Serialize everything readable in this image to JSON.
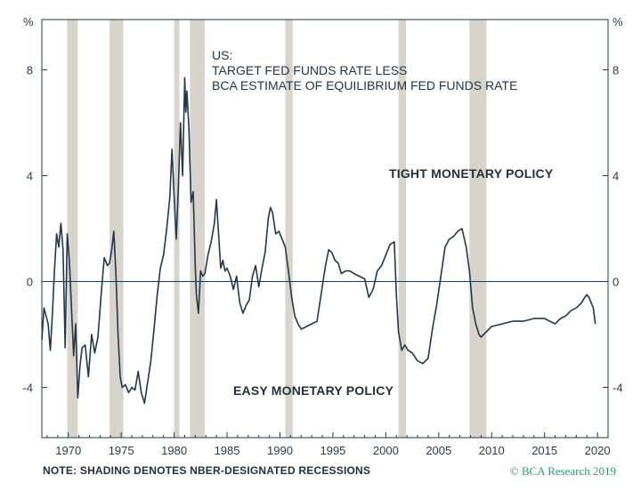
{
  "chart_data": {
    "type": "line",
    "title_lines": [
      "US:",
      "TARGET FED FUNDS RATE LESS",
      "BCA ESTIMATE OF EQUILIBRIUM FED FUNDS RATE"
    ],
    "unit_left": "%",
    "unit_right": "%",
    "xlim": [
      1967.5,
      2021
    ],
    "ylim": [
      -5.9,
      9.9
    ],
    "x_ticks": [
      1970,
      1975,
      1980,
      1985,
      1990,
      1995,
      2000,
      2005,
      2010,
      2015,
      2020
    ],
    "y_ticks": [
      -4,
      0,
      4,
      8
    ],
    "zero_line": true,
    "line_color": "#22384a",
    "recession_color": "#d8d4cc",
    "annotations": [
      "TIGHT MONETARY POLICY",
      "EASY MONETARY POLICY"
    ],
    "recessions": [
      [
        1969.9,
        1970.9
      ],
      [
        1973.9,
        1975.2
      ],
      [
        1980.0,
        1980.5
      ],
      [
        1981.5,
        1982.9
      ],
      [
        1990.5,
        1991.2
      ],
      [
        2001.2,
        2001.9
      ],
      [
        2007.9,
        2009.5
      ]
    ],
    "series": [
      {
        "x": [
          1967.5,
          1967.7,
          1967.9,
          1968.1,
          1968.3,
          1968.5,
          1968.7,
          1968.9,
          1969.1,
          1969.3,
          1969.5,
          1969.7,
          1969.9,
          1970.1,
          1970.3,
          1970.5,
          1970.7,
          1970.9,
          1971.1,
          1971.3,
          1971.6,
          1971.9,
          1972.2,
          1972.5,
          1972.8,
          1973.1,
          1973.4,
          1973.7,
          1973.9,
          1974.1,
          1974.3,
          1974.5,
          1974.7,
          1974.9,
          1975.1,
          1975.4,
          1975.7,
          1976.0,
          1976.3,
          1976.6,
          1976.9,
          1977.2,
          1977.5,
          1977.8,
          1978.1,
          1978.4,
          1978.7,
          1979.0,
          1979.3,
          1979.6,
          1979.8,
          1980.0,
          1980.2,
          1980.4,
          1980.6,
          1980.8,
          1981.0,
          1981.1,
          1981.2,
          1981.4,
          1981.6,
          1981.8,
          1982.0,
          1982.1,
          1982.3,
          1982.5,
          1982.7,
          1982.9,
          1983.2,
          1983.5,
          1983.8,
          1984.0,
          1984.2,
          1984.4,
          1984.6,
          1984.8,
          1985.0,
          1985.3,
          1985.6,
          1985.9,
          1986.2,
          1986.5,
          1986.8,
          1987.1,
          1987.4,
          1987.7,
          1988.0,
          1988.3,
          1988.6,
          1988.9,
          1989.1,
          1989.3,
          1989.6,
          1989.9,
          1990.2,
          1990.5,
          1990.8,
          1991.1,
          1991.4,
          1991.7,
          1992.0,
          1992.5,
          1993.0,
          1993.5,
          1994.0,
          1994.3,
          1994.6,
          1994.9,
          1995.2,
          1995.5,
          1995.8,
          1996.2,
          1996.6,
          1997.0,
          1997.5,
          1998.0,
          1998.4,
          1998.8,
          1999.2,
          1999.6,
          2000.0,
          2000.4,
          2000.8,
          2001.0,
          2001.2,
          2001.5,
          2001.8,
          2002.1,
          2002.5,
          2003.0,
          2003.5,
          2004.0,
          2004.4,
          2004.8,
          2005.2,
          2005.6,
          2006.0,
          2006.4,
          2006.8,
          2007.2,
          2007.6,
          2007.9,
          2008.2,
          2008.5,
          2008.8,
          2009.0,
          2009.5,
          2010.0,
          2011.0,
          2012.0,
          2013.0,
          2014.0,
          2015.0,
          2015.5,
          2016.0,
          2016.5,
          2017.0,
          2017.5,
          2018.0,
          2018.5,
          2018.8,
          2019.0,
          2019.2,
          2019.4,
          2019.6,
          2019.8
        ],
        "y": [
          -2.2,
          -1.0,
          -1.3,
          -1.6,
          -2.6,
          -1.2,
          0.5,
          1.8,
          1.3,
          2.2,
          1.2,
          -2.5,
          1.8,
          0.8,
          -1.0,
          -2.8,
          -1.6,
          -4.4,
          -3.2,
          -2.5,
          -2.4,
          -3.6,
          -2.0,
          -2.7,
          -2.1,
          -0.5,
          0.9,
          0.6,
          0.7,
          1.2,
          1.9,
          0.3,
          -2.0,
          -3.6,
          -4.0,
          -3.9,
          -4.2,
          -4.0,
          -4.1,
          -3.4,
          -4.2,
          -4.6,
          -3.8,
          -3.0,
          -1.8,
          -0.5,
          0.5,
          1.0,
          2.0,
          3.2,
          5.0,
          3.2,
          1.6,
          3.6,
          6.0,
          4.0,
          7.7,
          6.4,
          7.2,
          5.8,
          3.0,
          3.4,
          0.5,
          -0.5,
          -1.2,
          0.4,
          0.2,
          0.3,
          1.0,
          1.5,
          2.2,
          3.1,
          1.8,
          0.5,
          0.8,
          0.4,
          0.5,
          0.2,
          -0.3,
          0.2,
          -0.8,
          -1.2,
          -0.9,
          -0.7,
          0.2,
          0.6,
          -0.2,
          0.5,
          1.1,
          2.4,
          2.8,
          2.6,
          1.8,
          1.9,
          1.6,
          1.3,
          0.4,
          -0.6,
          -1.3,
          -1.6,
          -1.8,
          -1.7,
          -1.6,
          -1.5,
          -0.2,
          0.6,
          1.2,
          1.1,
          0.8,
          0.7,
          0.3,
          0.4,
          0.4,
          0.3,
          0.2,
          0.1,
          -0.6,
          -0.3,
          0.4,
          0.6,
          1.0,
          1.4,
          1.5,
          -0.5,
          -1.9,
          -2.6,
          -2.4,
          -2.6,
          -2.7,
          -3.0,
          -3.1,
          -2.9,
          -1.8,
          -0.9,
          0.2,
          1.3,
          1.6,
          1.7,
          1.9,
          2.0,
          1.3,
          0.4,
          -1.0,
          -1.6,
          -2.0,
          -2.1,
          -1.9,
          -1.7,
          -1.6,
          -1.5,
          -1.5,
          -1.4,
          -1.4,
          -1.5,
          -1.6,
          -1.4,
          -1.3,
          -1.1,
          -1.0,
          -0.8,
          -0.6,
          -0.5,
          -0.6,
          -0.8,
          -1.0,
          -1.6
        ]
      }
    ]
  },
  "footnote": "NOTE: SHADING DENOTES NBER-DESIGNATED RECESSIONS",
  "credit": "© BCA Research 2019"
}
